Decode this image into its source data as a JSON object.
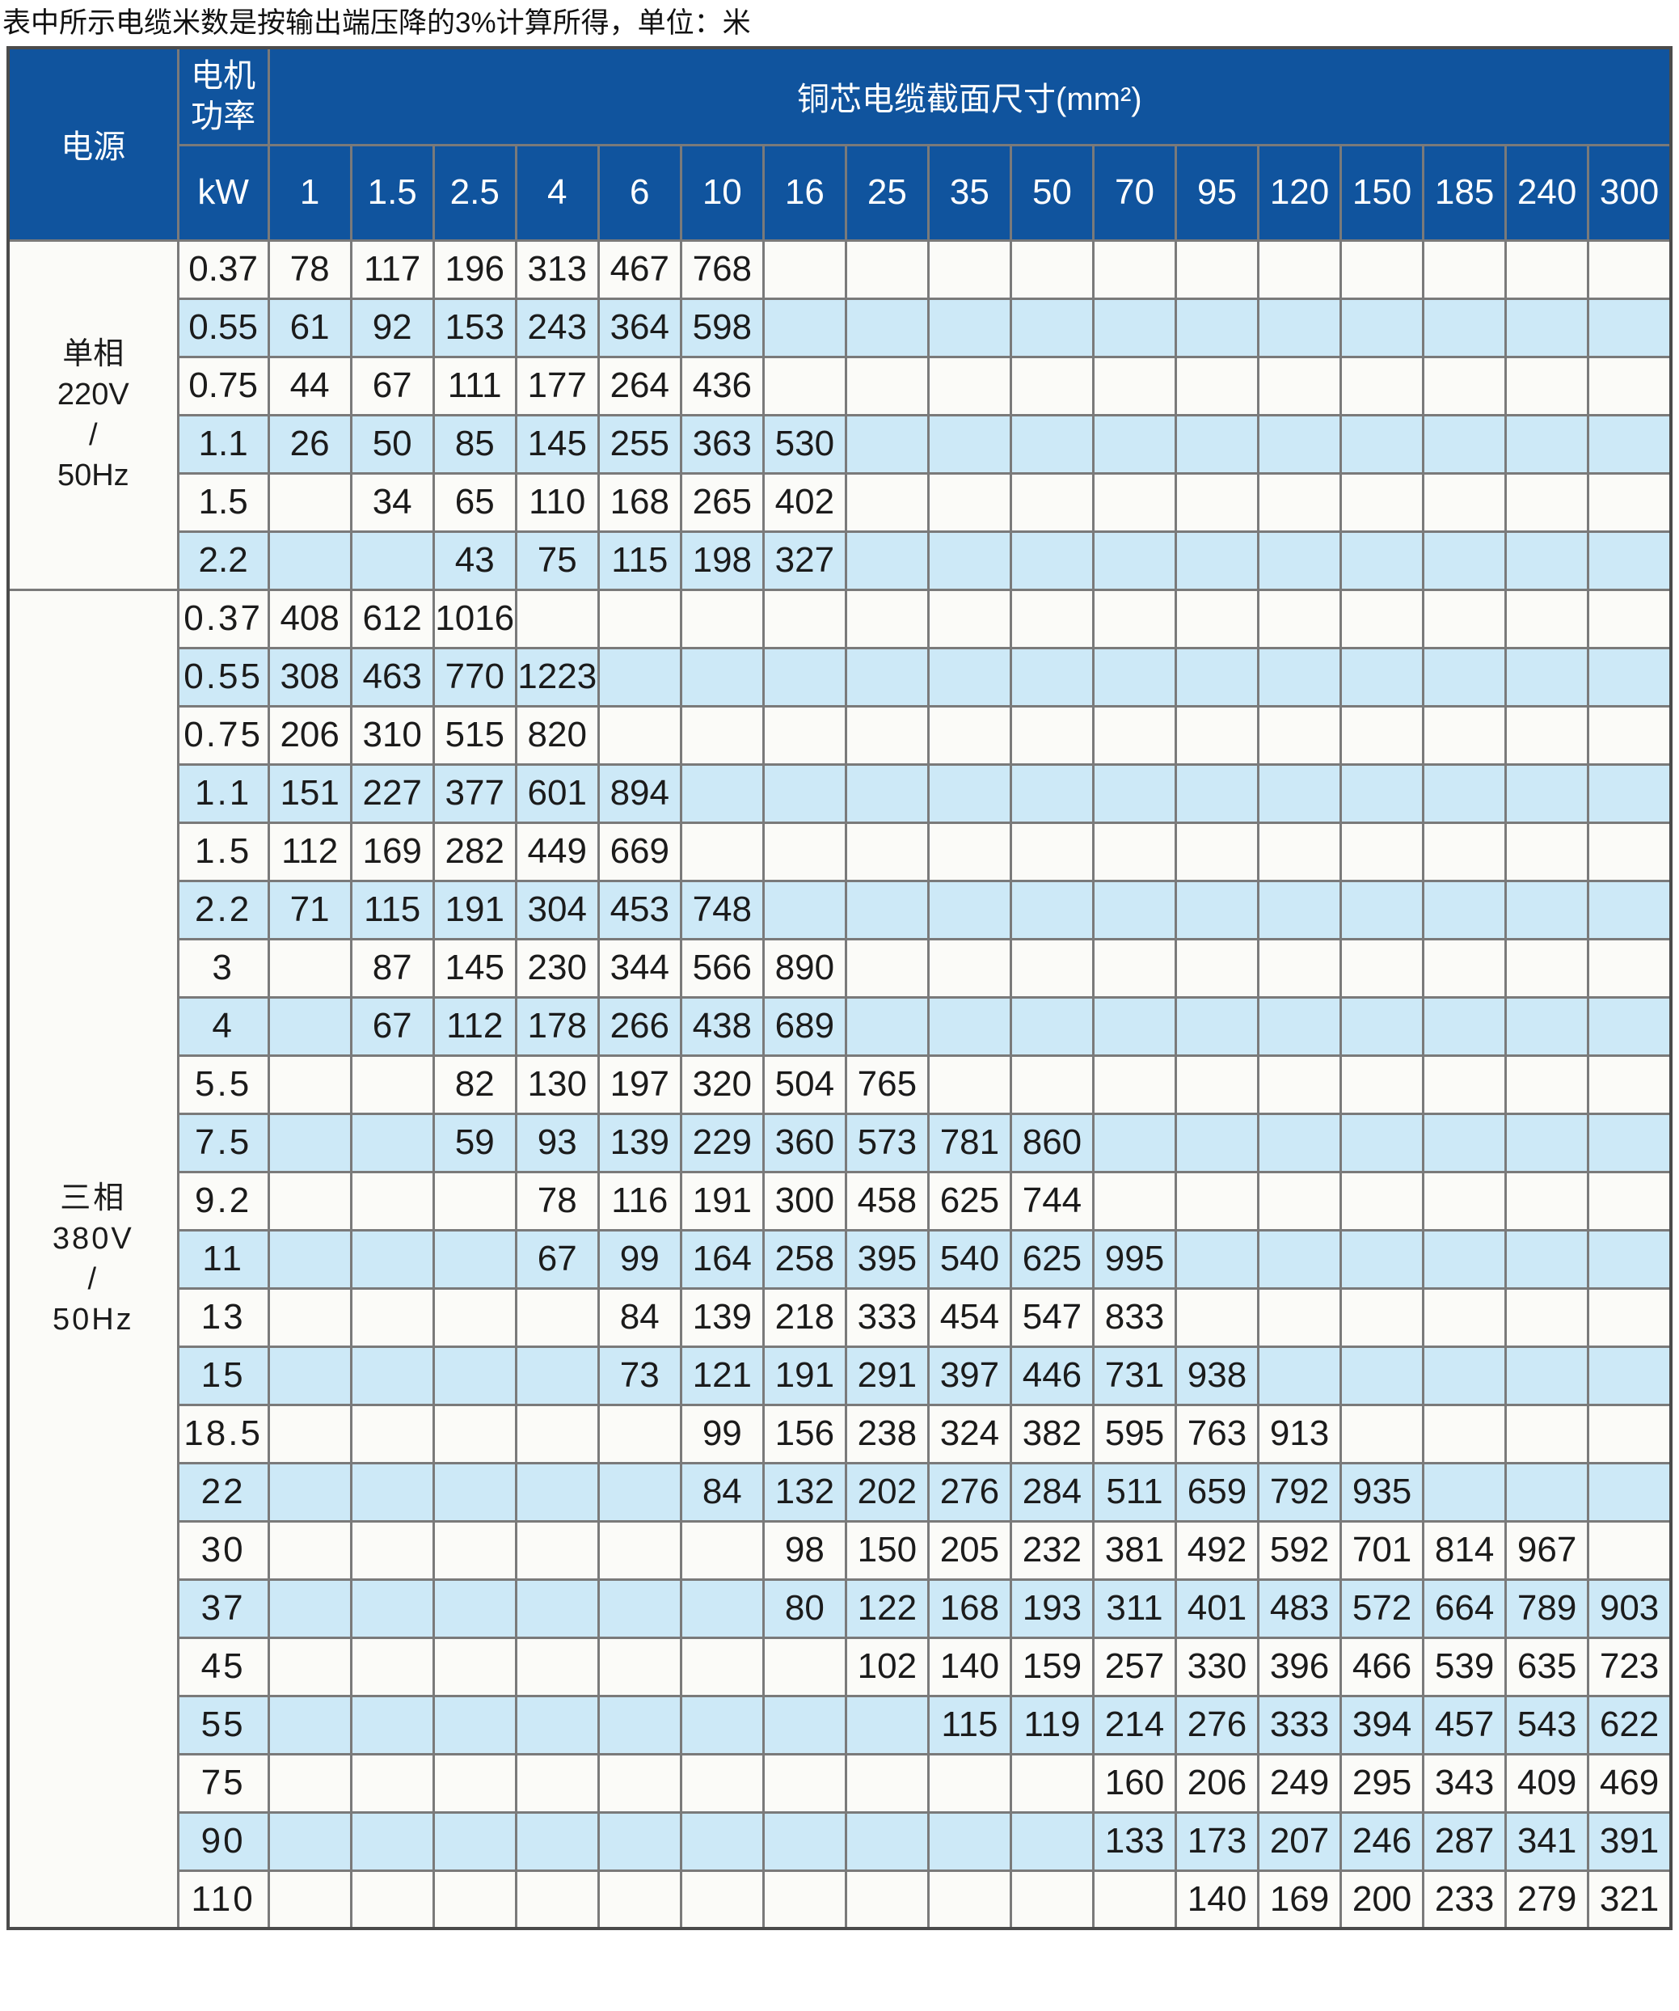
{
  "note": "表中所示电缆米数是按输出端压降的3%计算所得，单位：米",
  "table": {
    "power_source_header": "电源",
    "motor_power_header_lines": [
      "电机",
      "功率"
    ],
    "motor_power_unit": "kW",
    "cross_section_header": "铜芯电缆截面尺寸(mm²)",
    "cross_section_columns": [
      "1",
      "1.5",
      "2.5",
      "4",
      "6",
      "10",
      "16",
      "25",
      "35",
      "50",
      "70",
      "95",
      "120",
      "150",
      "185",
      "240",
      "300"
    ],
    "sections": [
      {
        "source_lines": [
          "单相",
          "220V",
          "/",
          "50Hz"
        ],
        "rows": [
          {
            "power_kw": "0.37",
            "values": [
              78,
              117,
              196,
              313,
              467,
              768,
              "",
              "",
              "",
              "",
              "",
              "",
              "",
              "",
              "",
              "",
              ""
            ]
          },
          {
            "power_kw": "0.55",
            "values": [
              61,
              92,
              153,
              243,
              364,
              598,
              "",
              "",
              "",
              "",
              "",
              "",
              "",
              "",
              "",
              "",
              ""
            ]
          },
          {
            "power_kw": "0.75",
            "values": [
              44,
              67,
              111,
              177,
              264,
              436,
              "",
              "",
              "",
              "",
              "",
              "",
              "",
              "",
              "",
              "",
              ""
            ]
          },
          {
            "power_kw": "1.1",
            "values": [
              26,
              50,
              85,
              145,
              255,
              363,
              530,
              "",
              "",
              "",
              "",
              "",
              "",
              "",
              "",
              "",
              ""
            ]
          },
          {
            "power_kw": "1.5",
            "values": [
              "",
              34,
              65,
              110,
              168,
              265,
              402,
              "",
              "",
              "",
              "",
              "",
              "",
              "",
              "",
              "",
              ""
            ]
          },
          {
            "power_kw": "2.2",
            "values": [
              "",
              "",
              43,
              75,
              115,
              198,
              327,
              "",
              "",
              "",
              "",
              "",
              "",
              "",
              "",
              "",
              ""
            ]
          }
        ]
      },
      {
        "source_lines": [
          "三相",
          "380V",
          "/",
          "50Hz"
        ],
        "rows": [
          {
            "power_kw": "0.37",
            "values": [
              408,
              612,
              1016,
              "",
              "",
              "",
              "",
              "",
              "",
              "",
              "",
              "",
              "",
              "",
              "",
              "",
              ""
            ]
          },
          {
            "power_kw": "0.55",
            "values": [
              308,
              463,
              770,
              1223,
              "",
              "",
              "",
              "",
              "",
              "",
              "",
              "",
              "",
              "",
              "",
              "",
              ""
            ]
          },
          {
            "power_kw": "0.75",
            "values": [
              206,
              310,
              515,
              820,
              "",
              "",
              "",
              "",
              "",
              "",
              "",
              "",
              "",
              "",
              "",
              "",
              ""
            ]
          },
          {
            "power_kw": "1.1",
            "values": [
              151,
              227,
              377,
              601,
              894,
              "",
              "",
              "",
              "",
              "",
              "",
              "",
              "",
              "",
              "",
              "",
              ""
            ]
          },
          {
            "power_kw": "1.5",
            "values": [
              112,
              169,
              282,
              449,
              669,
              "",
              "",
              "",
              "",
              "",
              "",
              "",
              "",
              "",
              "",
              "",
              ""
            ]
          },
          {
            "power_kw": "2.2",
            "values": [
              71,
              115,
              191,
              304,
              453,
              748,
              "",
              "",
              "",
              "",
              "",
              "",
              "",
              "",
              "",
              "",
              ""
            ]
          },
          {
            "power_kw": "3",
            "values": [
              "",
              87,
              145,
              230,
              344,
              566,
              890,
              "",
              "",
              "",
              "",
              "",
              "",
              "",
              "",
              "",
              ""
            ]
          },
          {
            "power_kw": "4",
            "values": [
              "",
              67,
              112,
              178,
              266,
              438,
              689,
              "",
              "",
              "",
              "",
              "",
              "",
              "",
              "",
              "",
              ""
            ]
          },
          {
            "power_kw": "5.5",
            "values": [
              "",
              "",
              82,
              130,
              197,
              320,
              504,
              765,
              "",
              "",
              "",
              "",
              "",
              "",
              "",
              "",
              ""
            ]
          },
          {
            "power_kw": "7.5",
            "values": [
              "",
              "",
              59,
              93,
              139,
              229,
              360,
              573,
              781,
              860,
              "",
              "",
              "",
              "",
              "",
              "",
              ""
            ]
          },
          {
            "power_kw": "9.2",
            "values": [
              "",
              "",
              "",
              78,
              116,
              191,
              300,
              458,
              625,
              744,
              "",
              "",
              "",
              "",
              "",
              "",
              ""
            ]
          },
          {
            "power_kw": "11",
            "values": [
              "",
              "",
              "",
              67,
              99,
              164,
              258,
              395,
              540,
              625,
              995,
              "",
              "",
              "",
              "",
              "",
              ""
            ]
          },
          {
            "power_kw": "13",
            "values": [
              "",
              "",
              "",
              "",
              84,
              139,
              218,
              333,
              454,
              547,
              833,
              "",
              "",
              "",
              "",
              "",
              ""
            ]
          },
          {
            "power_kw": "15",
            "values": [
              "",
              "",
              "",
              "",
              73,
              121,
              191,
              291,
              397,
              446,
              731,
              938,
              "",
              "",
              "",
              "",
              ""
            ]
          },
          {
            "power_kw": "18.5",
            "values": [
              "",
              "",
              "",
              "",
              "",
              99,
              156,
              238,
              324,
              382,
              595,
              763,
              913,
              "",
              "",
              "",
              ""
            ]
          },
          {
            "power_kw": "22",
            "values": [
              "",
              "",
              "",
              "",
              "",
              84,
              132,
              202,
              276,
              284,
              511,
              659,
              792,
              935,
              "",
              "",
              ""
            ]
          },
          {
            "power_kw": "30",
            "values": [
              "",
              "",
              "",
              "",
              "",
              "",
              98,
              150,
              205,
              232,
              381,
              492,
              592,
              701,
              814,
              967,
              ""
            ]
          },
          {
            "power_kw": "37",
            "values": [
              "",
              "",
              "",
              "",
              "",
              "",
              80,
              122,
              168,
              193,
              311,
              401,
              483,
              572,
              664,
              789,
              903
            ]
          },
          {
            "power_kw": "45",
            "values": [
              "",
              "",
              "",
              "",
              "",
              "",
              "",
              102,
              140,
              159,
              257,
              330,
              396,
              466,
              539,
              635,
              723
            ]
          },
          {
            "power_kw": "55",
            "values": [
              "",
              "",
              "",
              "",
              "",
              "",
              "",
              "",
              115,
              119,
              214,
              276,
              333,
              394,
              457,
              543,
              622
            ]
          },
          {
            "power_kw": "75",
            "values": [
              "",
              "",
              "",
              "",
              "",
              "",
              "",
              "",
              "",
              "",
              160,
              206,
              249,
              295,
              343,
              409,
              469
            ]
          },
          {
            "power_kw": "90",
            "values": [
              "",
              "",
              "",
              "",
              "",
              "",
              "",
              "",
              "",
              "",
              133,
              173,
              207,
              246,
              287,
              341,
              391
            ]
          },
          {
            "power_kw": "110",
            "values": [
              "",
              "",
              "",
              "",
              "",
              "",
              "",
              "",
              "",
              "",
              "",
              140,
              169,
              200,
              233,
              279,
              321
            ]
          }
        ]
      }
    ],
    "colors": {
      "header_background": "#10549E",
      "header_text": "#FFFFFF",
      "stripe_row": "#CDE9F7",
      "plain_row": "#FBFBF8",
      "grid_line": "#7A7A7A",
      "outer_border": "#4B4B4B",
      "cell_text": "#1B1B1B",
      "note_text": "#111111"
    }
  }
}
